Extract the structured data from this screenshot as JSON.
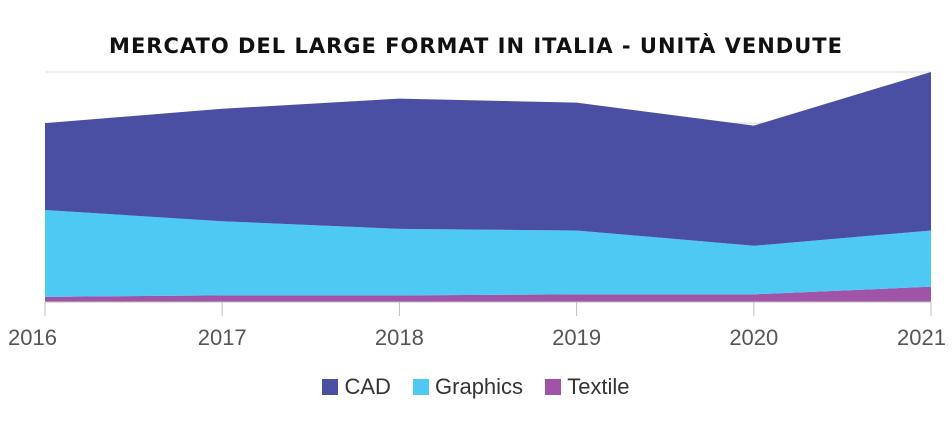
{
  "chart_data": {
    "type": "area",
    "stacked": true,
    "title": "Mercato del Large Format in Italia - Unità vendute",
    "xlabel": "",
    "ylabel": "",
    "categories": [
      "2016",
      "2017",
      "2018",
      "2019",
      "2020",
      "2021"
    ],
    "ylim": [
      0,
      4.5
    ],
    "grid": true,
    "legend_position": "bottom",
    "series": [
      {
        "name": "Textile",
        "color": "#A054A8",
        "values": [
          0.1,
          0.13,
          0.13,
          0.15,
          0.15,
          0.3
        ]
      },
      {
        "name": "Graphics",
        "color": "#4DC9F3",
        "values": [
          1.7,
          1.45,
          1.3,
          1.25,
          0.95,
          1.1
        ]
      },
      {
        "name": "CAD",
        "color": "#4A4FA3",
        "values": [
          1.7,
          2.2,
          2.55,
          2.5,
          2.35,
          3.1
        ]
      }
    ]
  }
}
